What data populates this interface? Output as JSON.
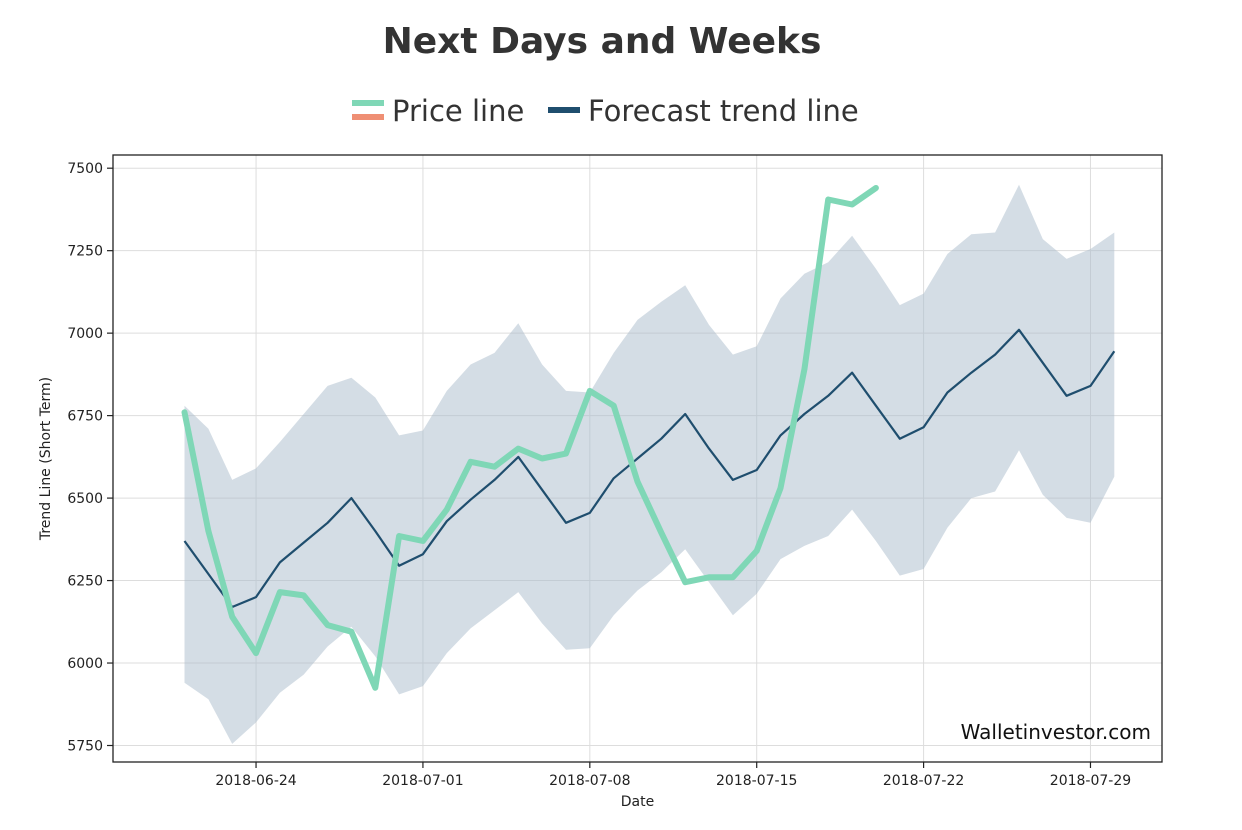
{
  "chart_data": {
    "type": "line",
    "title": "Next Days and Weeks",
    "xlabel": "Date",
    "ylabel": "Trend Line (Short Term)",
    "watermark": "Walletinvestor.com",
    "legend": [
      {
        "label": "Price line",
        "colors": [
          "#7fd7b6",
          "#ef8f74"
        ]
      },
      {
        "label": "Forecast trend line",
        "colors": [
          "#1f4e6e"
        ]
      }
    ],
    "x_ticks": [
      "2018-06-24",
      "2018-07-01",
      "2018-07-08",
      "2018-07-15",
      "2018-07-22",
      "2018-07-29"
    ],
    "y_ticks": [
      5750,
      6000,
      6250,
      6500,
      6750,
      7000,
      7250,
      7500
    ],
    "ylim": [
      5700,
      7540
    ],
    "xlim": [
      "2018-06-18",
      "2018-08-01"
    ],
    "grid": true,
    "price_line": {
      "name": "Price line",
      "color": "#7fd7b6",
      "points": [
        [
          "2018-06-21",
          6760
        ],
        [
          "2018-06-22",
          6400
        ],
        [
          "2018-06-23",
          6140
        ],
        [
          "2018-06-24",
          6030
        ],
        [
          "2018-06-25",
          6215
        ],
        [
          "2018-06-26",
          6205
        ],
        [
          "2018-06-27",
          6115
        ],
        [
          "2018-06-28",
          6095
        ],
        [
          "2018-06-29",
          5925
        ],
        [
          "2018-06-30",
          6385
        ],
        [
          "2018-07-01",
          6370
        ],
        [
          "2018-07-02",
          6465
        ],
        [
          "2018-07-03",
          6610
        ],
        [
          "2018-07-04",
          6595
        ],
        [
          "2018-07-05",
          6650
        ],
        [
          "2018-07-06",
          6620
        ],
        [
          "2018-07-07",
          6635
        ],
        [
          "2018-07-08",
          6825
        ],
        [
          "2018-07-09",
          6780
        ],
        [
          "2018-07-10",
          6550
        ],
        [
          "2018-07-11",
          6395
        ],
        [
          "2018-07-12",
          6245
        ],
        [
          "2018-07-13",
          6260
        ],
        [
          "2018-07-14",
          6260
        ],
        [
          "2018-07-15",
          6340
        ],
        [
          "2018-07-16",
          6530
        ],
        [
          "2018-07-17",
          6890
        ],
        [
          "2018-07-18",
          7405
        ],
        [
          "2018-07-19",
          7390
        ],
        [
          "2018-07-20",
          7440
        ]
      ]
    },
    "forecast_line": {
      "name": "Forecast trend line",
      "color": "#1f4e6e",
      "band_color": "#a9bccb",
      "points": [
        [
          "2018-06-21",
          6370,
          5940,
          6780
        ],
        [
          "2018-06-22",
          6270,
          5890,
          6710
        ],
        [
          "2018-06-23",
          6170,
          5755,
          6555
        ],
        [
          "2018-06-24",
          6200,
          5820,
          6590
        ],
        [
          "2018-06-25",
          6305,
          5910,
          6670
        ],
        [
          "2018-06-26",
          6365,
          5965,
          6755
        ],
        [
          "2018-06-27",
          6425,
          6050,
          6840
        ],
        [
          "2018-06-28",
          6500,
          6110,
          6865
        ],
        [
          "2018-06-29",
          6400,
          6020,
          6805
        ],
        [
          "2018-06-30",
          6295,
          5905,
          6690
        ],
        [
          "2018-07-01",
          6330,
          5930,
          6705
        ],
        [
          "2018-07-02",
          6430,
          6030,
          6825
        ],
        [
          "2018-07-03",
          6495,
          6105,
          6905
        ],
        [
          "2018-07-04",
          6555,
          6160,
          6940
        ],
        [
          "2018-07-05",
          6625,
          6215,
          7030
        ],
        [
          "2018-07-06",
          6525,
          6120,
          6905
        ],
        [
          "2018-07-07",
          6425,
          6040,
          6825
        ],
        [
          "2018-07-08",
          6455,
          6045,
          6820
        ],
        [
          "2018-07-09",
          6560,
          6145,
          6940
        ],
        [
          "2018-07-10",
          6620,
          6220,
          7040
        ],
        [
          "2018-07-11",
          6680,
          6275,
          7095
        ],
        [
          "2018-07-12",
          6755,
          6345,
          7145
        ],
        [
          "2018-07-13",
          6650,
          6245,
          7025
        ],
        [
          "2018-07-14",
          6555,
          6145,
          6935
        ],
        [
          "2018-07-15",
          6585,
          6210,
          6960
        ],
        [
          "2018-07-16",
          6690,
          6315,
          7105
        ],
        [
          "2018-07-17",
          6755,
          6355,
          7180
        ],
        [
          "2018-07-18",
          6810,
          6385,
          7215
        ],
        [
          "2018-07-19",
          6880,
          6465,
          7295
        ],
        [
          "2018-07-20",
          6780,
          6370,
          7195
        ],
        [
          "2018-07-21",
          6680,
          6265,
          7085
        ],
        [
          "2018-07-22",
          6715,
          6285,
          7120
        ],
        [
          "2018-07-23",
          6820,
          6410,
          7240
        ],
        [
          "2018-07-24",
          6880,
          6500,
          7300
        ],
        [
          "2018-07-25",
          6935,
          6520,
          7305
        ],
        [
          "2018-07-26",
          7010,
          6645,
          7450
        ],
        [
          "2018-07-27",
          6910,
          6510,
          7285
        ],
        [
          "2018-07-28",
          6810,
          6440,
          7225
        ],
        [
          "2018-07-29",
          6840,
          6425,
          7255
        ],
        [
          "2018-07-30",
          6945,
          6565,
          7305
        ]
      ]
    }
  }
}
